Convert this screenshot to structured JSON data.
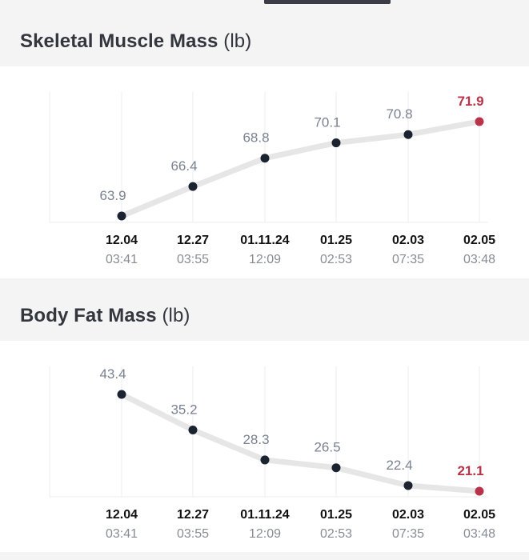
{
  "sections": [
    {
      "title": "Skeletal Muscle Mass",
      "unit": "(lb)"
    },
    {
      "title": "Body Fat Mass",
      "unit": "(lb)"
    }
  ],
  "colors": {
    "point": "#1c2330",
    "point_latest": "#b8334a",
    "line": "#e6e6e6",
    "grid": "#ececec"
  },
  "chart_data": [
    {
      "type": "line",
      "title": "Skeletal Muscle Mass (lb)",
      "categories": [
        "12.04",
        "12.27",
        "01.11.24",
        "01.25",
        "02.03",
        "02.05"
      ],
      "times": [
        "03:41",
        "03:55",
        "12:09",
        "02:53",
        "07:35",
        "03:48"
      ],
      "series": [
        {
          "values": [
            63.9,
            66.4,
            68.8,
            70.1,
            70.8,
            71.9
          ]
        }
      ],
      "ylim": [
        63.9,
        71.9
      ],
      "grid": true
    },
    {
      "type": "line",
      "title": "Body Fat Mass (lb)",
      "categories": [
        "12.04",
        "12.27",
        "01.11.24",
        "01.25",
        "02.03",
        "02.05"
      ],
      "times": [
        "03:41",
        "03:55",
        "12:09",
        "02:53",
        "07:35",
        "03:48"
      ],
      "series": [
        {
          "values": [
            43.4,
            35.2,
            28.3,
            26.5,
            22.4,
            21.1
          ]
        }
      ],
      "ylim": [
        21.1,
        43.4
      ],
      "grid": true
    }
  ]
}
